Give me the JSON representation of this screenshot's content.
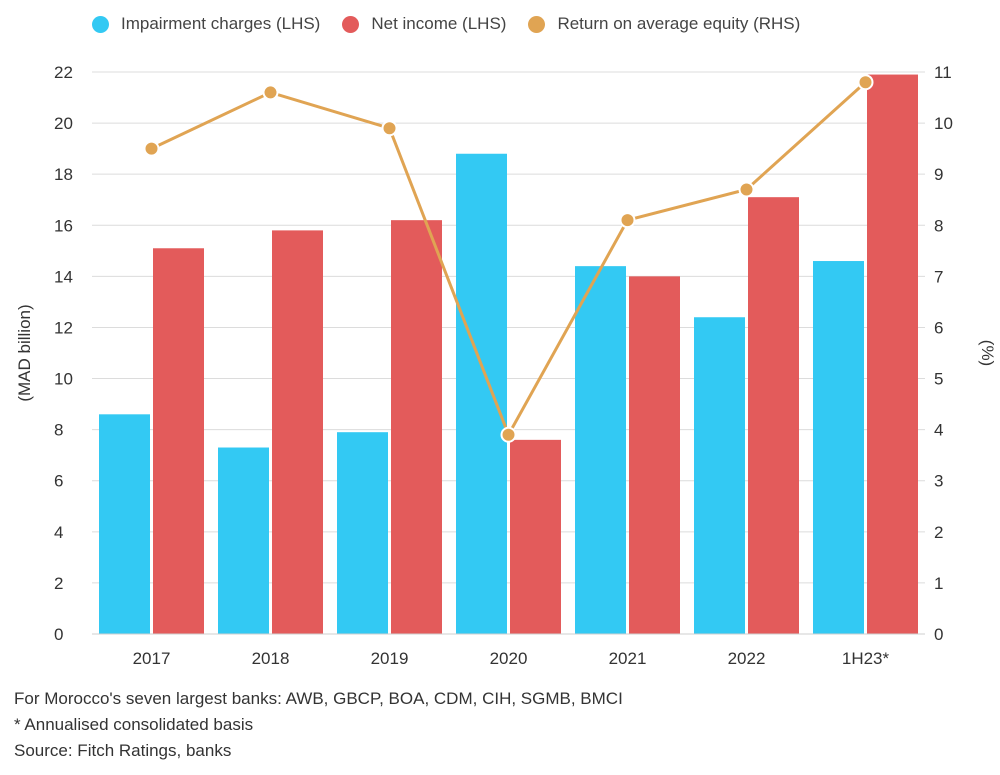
{
  "chart_data": {
    "type": "bar",
    "categories": [
      "2017",
      "2018",
      "2019",
      "2020",
      "2021",
      "2022",
      "1H23*"
    ],
    "series": [
      {
        "name": "Impairment charges (LHS)",
        "type": "bar",
        "axis": "left",
        "color": "#33c9f3",
        "values": [
          8.6,
          7.3,
          7.9,
          18.8,
          14.4,
          12.4,
          14.6
        ]
      },
      {
        "name": "Net income (LHS)",
        "type": "bar",
        "axis": "left",
        "color": "#e35b5b",
        "values": [
          15.1,
          15.8,
          16.2,
          7.6,
          14.0,
          17.1,
          21.9
        ]
      },
      {
        "name": "Return on average equity (RHS)",
        "type": "line",
        "axis": "right",
        "color": "#e0a453",
        "values": [
          9.5,
          10.6,
          9.9,
          3.9,
          8.1,
          8.7,
          10.8
        ]
      }
    ],
    "ylabel_left": "(MAD billion)",
    "ylabel_right": "(%)",
    "ylim_left": [
      0,
      22
    ],
    "ylim_right": [
      0,
      11
    ],
    "yticks_left": [
      "0",
      "2",
      "4",
      "6",
      "8",
      "10",
      "12",
      "14",
      "16",
      "18",
      "20",
      "22"
    ],
    "yticks_right": [
      "0",
      "1",
      "2",
      "3",
      "4",
      "5",
      "6",
      "7",
      "8",
      "9",
      "10",
      "11"
    ],
    "grid": true,
    "legend_position": "top"
  },
  "notes": {
    "line1": "For Morocco's seven largest banks: AWB, GBCP, BOA, CDM, CIH, SGMB, BMCI",
    "line2": "* Annualised consolidated basis",
    "line3": "Source: Fitch Ratings, banks"
  }
}
